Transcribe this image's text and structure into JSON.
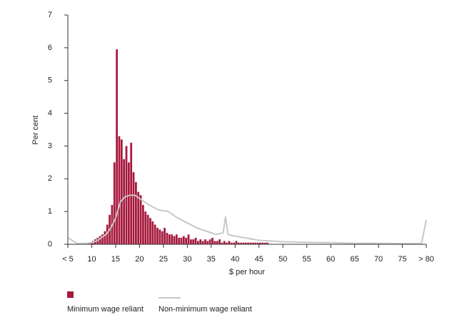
{
  "chart_data": {
    "type": "histogram",
    "x_label": "$ per hour",
    "y_label": "Per cent",
    "xlim": [
      5,
      80
    ],
    "ylim": [
      0,
      7
    ],
    "xticks": [
      {
        "value": 5,
        "label": "< 5"
      },
      10,
      15,
      20,
      25,
      30,
      35,
      40,
      45,
      50,
      55,
      60,
      65,
      70,
      75,
      {
        "value": 80,
        "label": "> 80"
      }
    ],
    "yticks": [
      0,
      1,
      2,
      3,
      4,
      5,
      6,
      7
    ],
    "series": [
      {
        "name": "Minimum wage reliant",
        "color": "#a6193c",
        "bins": [
          9,
          9.5,
          10,
          10.5,
          11,
          11.5,
          12,
          12.5,
          13,
          13.5,
          14,
          14.5,
          15,
          15.5,
          16,
          16.5,
          17,
          17.5,
          18,
          18.5,
          19,
          19.5,
          20,
          20.5,
          21,
          21.5,
          22,
          22.5,
          23,
          23.5,
          24,
          24.5,
          25,
          25.5,
          26,
          26.5,
          27,
          27.5,
          28,
          28.5,
          29,
          29.5,
          30,
          30.5,
          31,
          31.5,
          32,
          32.5,
          33,
          33.5,
          34,
          34.5,
          35,
          35.5,
          36,
          36.5,
          37,
          37.5,
          38,
          38.5,
          39,
          39.5,
          40,
          40.5,
          41,
          41.5,
          42,
          42.5,
          43,
          43.5,
          44,
          44.5,
          45,
          45.5,
          46,
          46.5,
          47
        ],
        "values": [
          0.05,
          0.05,
          0.1,
          0.15,
          0.2,
          0.25,
          0.3,
          0.4,
          0.6,
          0.9,
          1.2,
          2.5,
          5.95,
          3.3,
          3.2,
          2.6,
          3.0,
          2.5,
          3.1,
          2.2,
          1.9,
          1.6,
          1.5,
          1.2,
          1.0,
          0.9,
          0.8,
          0.7,
          0.6,
          0.5,
          0.45,
          0.4,
          0.5,
          0.35,
          0.3,
          0.3,
          0.25,
          0.3,
          0.2,
          0.2,
          0.25,
          0.2,
          0.3,
          0.15,
          0.15,
          0.2,
          0.1,
          0.15,
          0.1,
          0.15,
          0.1,
          0.15,
          0.2,
          0.1,
          0.1,
          0.15,
          0.05,
          0.1,
          0.05,
          0.1,
          0.05,
          0.05,
          0.1,
          0.05,
          0.05,
          0.05,
          0.05,
          0.05,
          0.05,
          0.05,
          0.05,
          0.05,
          0.05,
          0.05,
          0.05,
          0.05
        ]
      },
      {
        "name": "Non-minimum wage reliant",
        "color": "#c8c8c8",
        "x": [
          5,
          7,
          9,
          10,
          11,
          12,
          13,
          14,
          15,
          16,
          17,
          18,
          19,
          20,
          22,
          24,
          26,
          28,
          30,
          32,
          34,
          36,
          37.5,
          38,
          38.5,
          40,
          42,
          45,
          50,
          55,
          60,
          65,
          70,
          75,
          79,
          80
        ],
        "values": [
          0.2,
          0.02,
          0.03,
          0.05,
          0.1,
          0.2,
          0.3,
          0.5,
          0.8,
          1.3,
          1.45,
          1.5,
          1.5,
          1.4,
          1.2,
          1.05,
          1.0,
          0.8,
          0.65,
          0.5,
          0.4,
          0.3,
          0.35,
          0.85,
          0.3,
          0.25,
          0.2,
          0.12,
          0.08,
          0.06,
          0.05,
          0.03,
          0.03,
          0.02,
          0.02,
          0.75
        ]
      }
    ]
  }
}
